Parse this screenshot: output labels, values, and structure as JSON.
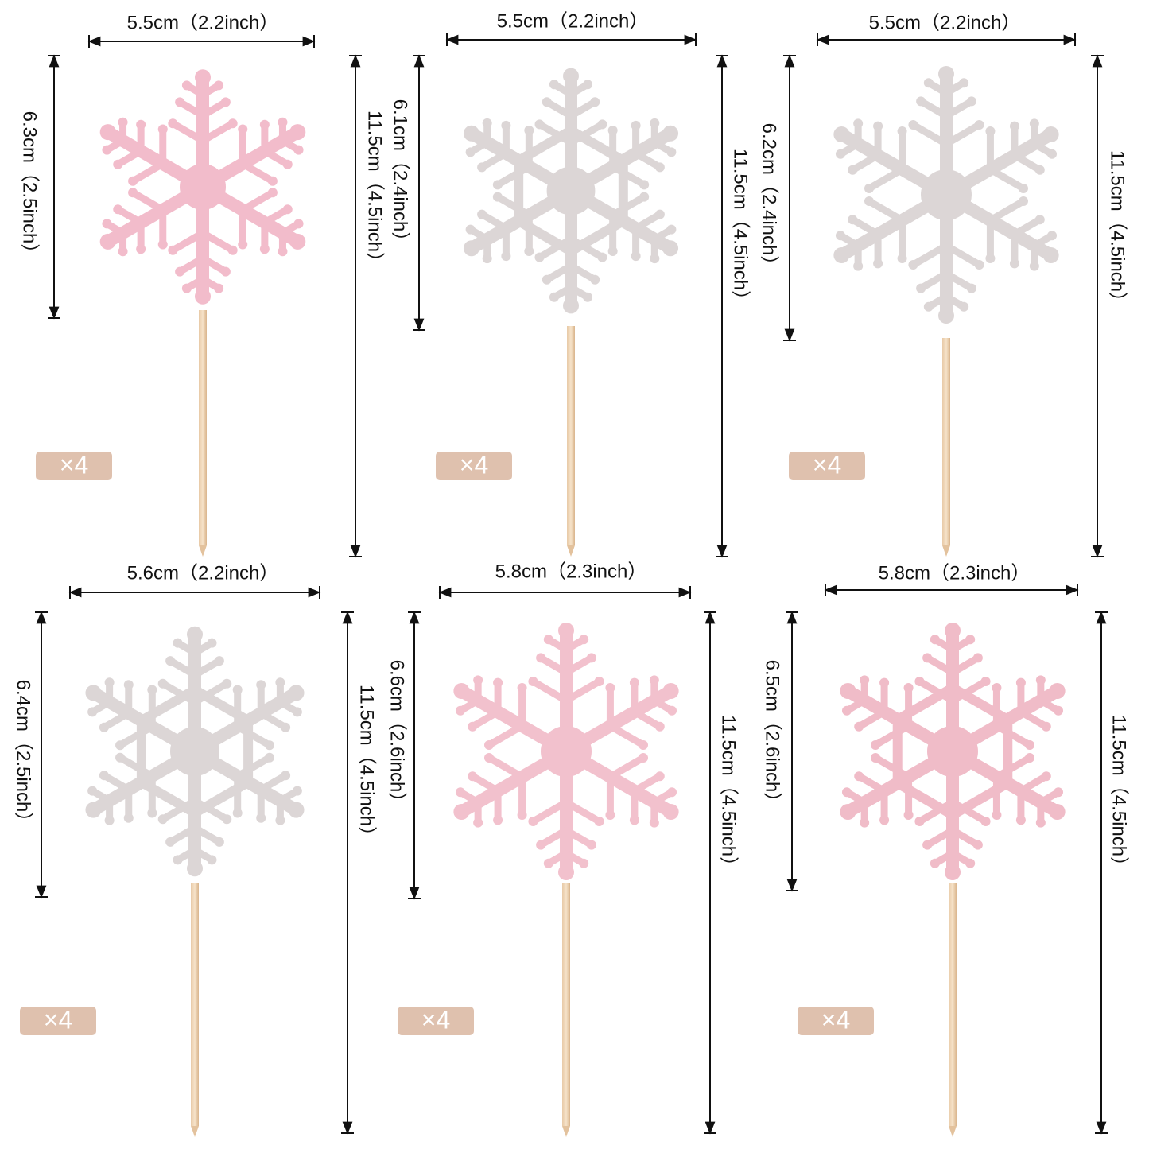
{
  "items": [
    {
      "width": "5.5cm（2.2inch）",
      "height": "6.3cm（2.5inch）",
      "total": "11.5cm（4.5inch）",
      "quantity": "×4"
    },
    {
      "width": "5.5cm（2.2inch）",
      "height": "6.1cm（2.4inch）",
      "total": "11.5cm（4.5inch）",
      "quantity": "×4"
    },
    {
      "width": "5.5cm（2.2inch）",
      "height": "6.2cm（2.4inch）",
      "total": "11.5cm（4.5inch）",
      "quantity": "×4"
    },
    {
      "width": "5.6cm（2.2inch）",
      "height": "6.4cm（2.5inch）",
      "total": "11.5cm（4.5inch）",
      "quantity": "×4"
    },
    {
      "width": "5.8cm（2.3inch）",
      "height": "6.6cm（2.6inch）",
      "total": "11.5cm（4.5inch）",
      "quantity": "×4"
    },
    {
      "width": "5.8cm（2.3inch）",
      "height": "6.5cm（2.6inch）",
      "total": "11.5cm（4.5inch）",
      "quantity": "×4"
    }
  ]
}
